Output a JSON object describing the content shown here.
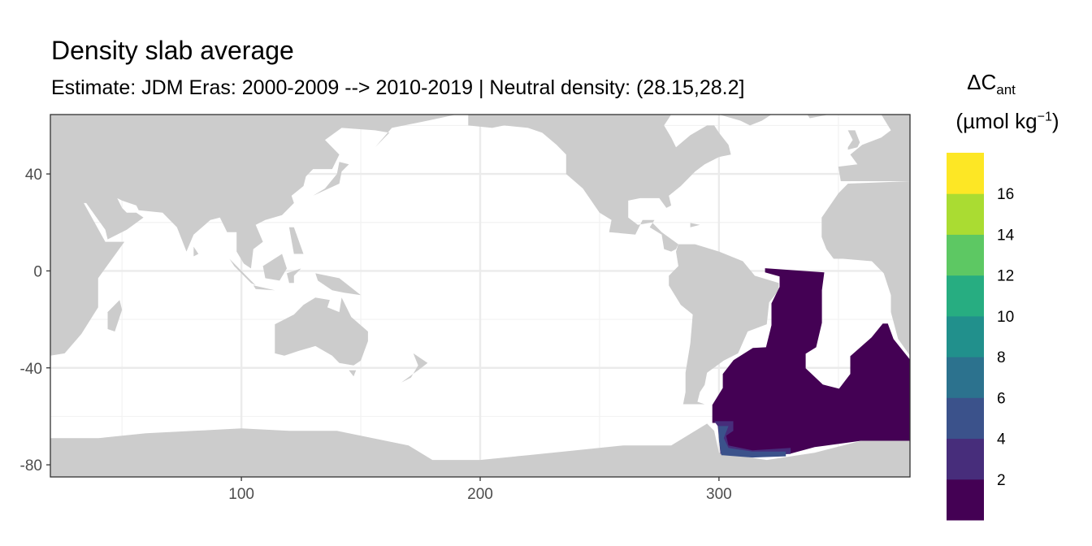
{
  "title": "Density slab average",
  "subtitle": "Estimate: JDM Eras: 2000-2009 --> 2010-2019 | Neutral density: (28.15,28.2]",
  "legend": {
    "title_main": "ΔC",
    "title_sub": "ant",
    "unit_prefix": "(µmol kg",
    "unit_sup": "−1",
    "unit_suffix": ")",
    "breaks": [
      "2",
      "4",
      "6",
      "8",
      "10",
      "12",
      "14",
      "16"
    ],
    "colors": [
      "#440154",
      "#472D7B",
      "#3B528B",
      "#2C728E",
      "#21908C",
      "#27AD81",
      "#5DC863",
      "#AADC32",
      "#FDE725"
    ]
  },
  "chart_data": {
    "type": "heatmap",
    "projection": "equirectangular",
    "xlim": [
      20,
      380
    ],
    "ylim": [
      -85,
      64.5
    ],
    "x_ticks": [
      "100",
      "200",
      "300"
    ],
    "y_ticks": [
      "40",
      "0",
      "-40",
      "-80"
    ],
    "grid": true,
    "land_color": "#CCCCCC",
    "legend_position": "right",
    "regions": [
      {
        "value_bin": "0-2",
        "color": "#440154",
        "outline_lon_lat": [
          [
            319.3,
            1.1
          ],
          [
            344.1,
            -0.6
          ],
          [
            343.1,
            -8.0
          ],
          [
            343.1,
            -21.4
          ],
          [
            340.7,
            -31.5
          ],
          [
            336.3,
            -34.2
          ],
          [
            336.3,
            -40.2
          ],
          [
            343.5,
            -46.9
          ],
          [
            350.3,
            -48.6
          ],
          [
            355.0,
            -42.5
          ],
          [
            355.0,
            -35.2
          ],
          [
            363.9,
            -27.4
          ],
          [
            368.6,
            -21.7
          ],
          [
            370.7,
            -21.7
          ],
          [
            373.1,
            -28.1
          ],
          [
            379.9,
            -36.5
          ],
          [
            379.9,
            -70.1
          ],
          [
            359.5,
            -70.1
          ],
          [
            340.1,
            -72.7
          ],
          [
            329.9,
            -75.4
          ],
          [
            314.2,
            -76.1
          ],
          [
            300.6,
            -75.4
          ],
          [
            299.9,
            -62.7
          ],
          [
            297.2,
            -62.7
          ],
          [
            297.2,
            -55.3
          ],
          [
            301.6,
            -48.3
          ],
          [
            301.6,
            -42.5
          ],
          [
            306.1,
            -36.8
          ],
          [
            314.2,
            -31.8
          ],
          [
            319.7,
            -31.5
          ],
          [
            322.0,
            -22.4
          ],
          [
            322.0,
            -13.4
          ],
          [
            325.4,
            -6.6
          ],
          [
            325.4,
            -2.3
          ],
          [
            319.3,
            -0.6
          ]
        ]
      },
      {
        "value_bin": "2-4",
        "color": "#472D7B",
        "outline_lon_lat": [
          [
            298,
            -62
          ],
          [
            306,
            -62
          ],
          [
            306,
            -66
          ],
          [
            303,
            -68
          ],
          [
            304,
            -72
          ],
          [
            314,
            -74
          ],
          [
            330,
            -73
          ],
          [
            330,
            -75.5
          ],
          [
            314,
            -76
          ],
          [
            300.6,
            -75.4
          ],
          [
            299.5,
            -64
          ]
        ]
      },
      {
        "value_bin": "4-6",
        "color": "#3B528B",
        "outline_lon_lat": [
          [
            299.8,
            -64
          ],
          [
            304,
            -64
          ],
          [
            302,
            -69
          ],
          [
            304,
            -73
          ],
          [
            314,
            -74.5
          ],
          [
            328,
            -74.5
          ],
          [
            328,
            -76.5
          ],
          [
            314,
            -77
          ],
          [
            301,
            -76
          ],
          [
            300,
            -70
          ]
        ]
      }
    ]
  }
}
